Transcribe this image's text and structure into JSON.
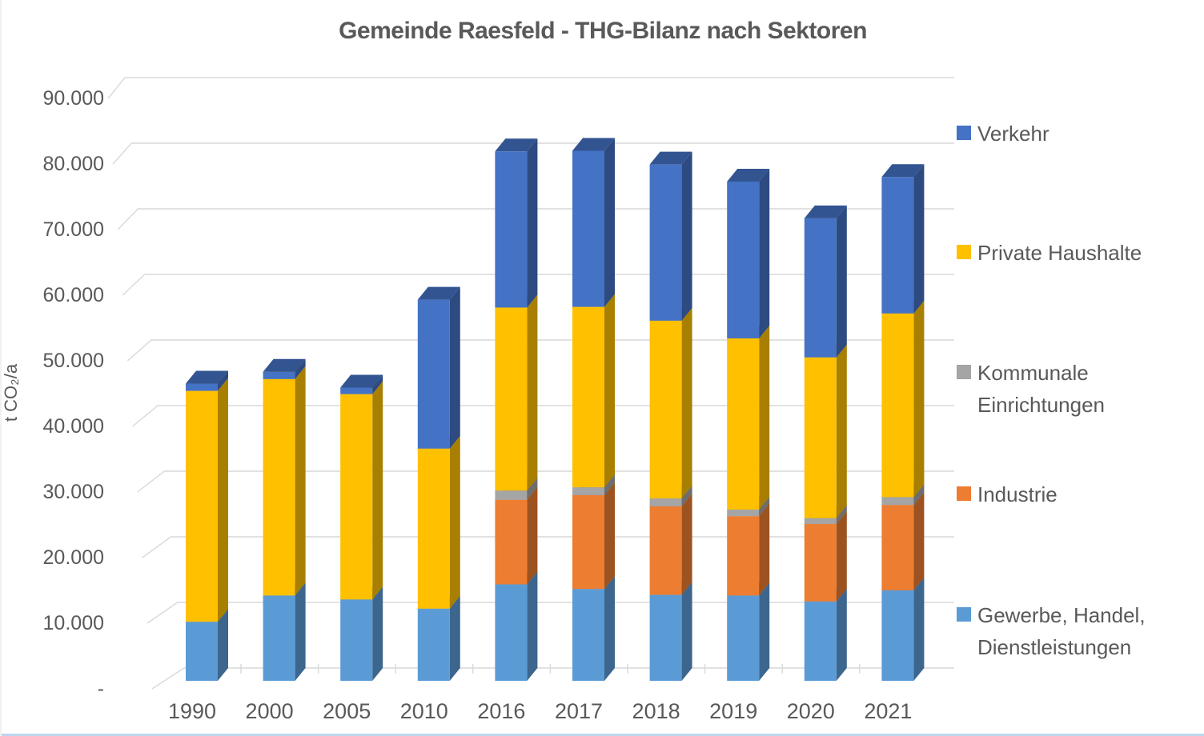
{
  "title": "Gemeinde Raesfeld - THG-Bilanz nach Sektoren",
  "y_axis": {
    "title": "t CO₂/a",
    "tick_labels": [
      "-",
      "10.000",
      "20.000",
      "30.000",
      "40.000",
      "50.000",
      "60.000",
      "70.000",
      "80.000",
      "90.000"
    ]
  },
  "legend": {
    "items": [
      {
        "label": "Verkehr",
        "color": "#4472C4"
      },
      {
        "label": "Private Haushalte",
        "color": "#FFC000"
      },
      {
        "label": "Kommunale Einrichtungen",
        "color": "#A5A5A5"
      },
      {
        "label": "Industrie",
        "color": "#ED7D31"
      },
      {
        "label": "Gewerbe, Handel, Dienstleistungen",
        "color": "#5B9BD5"
      }
    ]
  },
  "chart_data": {
    "type": "bar",
    "subtype": "3d-stacked-column",
    "title": "Gemeinde Raesfeld - THG-Bilanz nach Sektoren",
    "xlabel": "",
    "ylabel": "t CO₂/a",
    "ylim": [
      0,
      90000
    ],
    "ytick_step": 10000,
    "grid": true,
    "legend_position": "right",
    "categories": [
      "1990",
      "2000",
      "2005",
      "2010",
      "2016",
      "2017",
      "2018",
      "2019",
      "2020",
      "2021"
    ],
    "series": [
      {
        "name": "Gewerbe, Handel, Dienstleistungen",
        "color": "#5B9BD5",
        "values": [
          9000,
          13000,
          12400,
          11000,
          14700,
          14000,
          13100,
          13000,
          12100,
          13800
        ]
      },
      {
        "name": "Industrie",
        "color": "#ED7D31",
        "values": [
          0,
          0,
          0,
          0,
          12900,
          14300,
          13500,
          12100,
          11800,
          13000
        ]
      },
      {
        "name": "Kommunale Einrichtungen",
        "color": "#A5A5A5",
        "values": [
          0,
          0,
          0,
          0,
          1400,
          1200,
          1200,
          1000,
          900,
          1200
        ]
      },
      {
        "name": "Private Haushalte",
        "color": "#FFC000",
        "values": [
          35200,
          33000,
          31300,
          24400,
          27900,
          27500,
          27100,
          26100,
          24500,
          28000
        ]
      },
      {
        "name": "Verkehr",
        "color": "#4472C4",
        "values": [
          1100,
          1100,
          1000,
          22700,
          23800,
          23800,
          23800,
          23900,
          21200,
          20800
        ]
      }
    ],
    "totals": [
      45300,
      47100,
      44700,
      58100,
      80700,
      80800,
      78500,
      76000,
      70500,
      76800
    ]
  },
  "style_colors": {
    "text": "#595959",
    "gridline": "#D9D9D9",
    "bottom_edge": "#BDD7EE"
  }
}
